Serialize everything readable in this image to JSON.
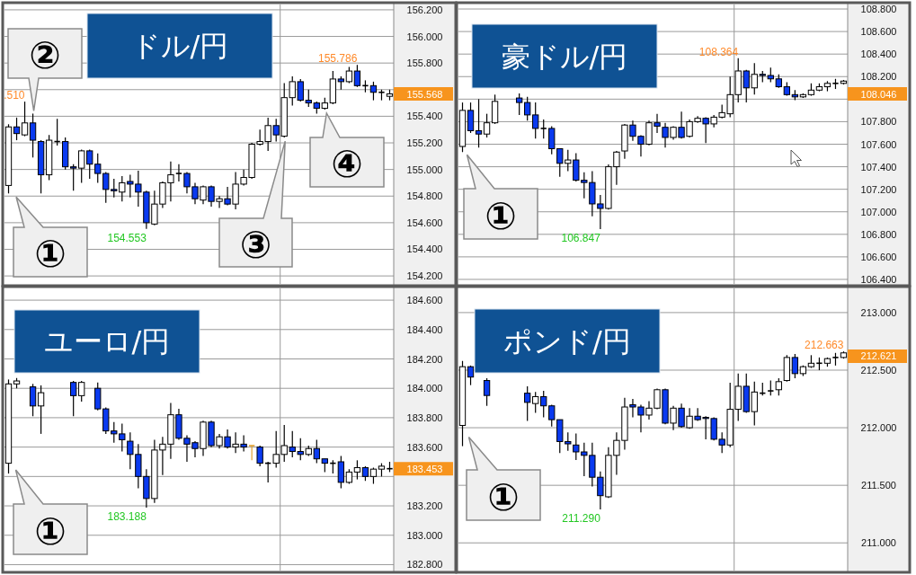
{
  "chart_data": [
    {
      "type": "candlestick",
      "title": "ドル/円",
      "categories": [
        null,
        null,
        null,
        null,
        null,
        null,
        null,
        null,
        null,
        null,
        null,
        null,
        null,
        null,
        null,
        null,
        null,
        null,
        null,
        null,
        null,
        null,
        null,
        null,
        null,
        null,
        null,
        null,
        null,
        null,
        null,
        null,
        null,
        null,
        null,
        null,
        null,
        null,
        null,
        null,
        null,
        null,
        null,
        null,
        null,
        null,
        null,
        null
      ],
      "ohlc": [
        [
          154.88,
          155.34,
          154.82,
          155.32
        ],
        [
          155.32,
          155.39,
          155.22,
          155.27
        ],
        [
          155.26,
          155.51,
          155.25,
          155.35
        ],
        [
          155.35,
          155.42,
          155.09,
          155.22
        ],
        [
          155.21,
          155.22,
          154.82,
          154.96
        ],
        [
          154.96,
          155.26,
          154.92,
          155.22
        ],
        [
          155.21,
          155.38,
          155.18,
          155.21
        ],
        [
          155.21,
          155.24,
          155.0,
          155.02
        ],
        [
          155.02,
          155.04,
          154.84,
          155.01
        ],
        [
          155.01,
          155.15,
          154.9,
          155.14
        ],
        [
          155.14,
          155.15,
          154.93,
          155.04
        ],
        [
          155.04,
          155.12,
          154.9,
          154.97
        ],
        [
          154.97,
          154.98,
          154.75,
          154.85
        ],
        [
          154.85,
          154.93,
          154.79,
          154.84
        ],
        [
          154.83,
          154.95,
          154.76,
          154.9
        ],
        [
          154.91,
          154.96,
          154.79,
          154.89
        ],
        [
          154.89,
          154.99,
          154.72,
          154.83
        ],
        [
          154.83,
          154.84,
          154.553,
          154.6
        ],
        [
          154.59,
          154.84,
          154.58,
          154.74
        ],
        [
          154.74,
          154.91,
          154.71,
          154.9
        ],
        [
          154.9,
          155.06,
          154.76,
          154.96
        ],
        [
          154.97,
          155.04,
          154.91,
          154.97
        ],
        [
          154.97,
          154.98,
          154.82,
          154.87
        ],
        [
          154.87,
          154.9,
          154.74,
          154.78
        ],
        [
          154.77,
          154.88,
          154.74,
          154.87
        ],
        [
          154.87,
          154.88,
          154.72,
          154.76
        ],
        [
          154.76,
          154.8,
          154.71,
          154.78
        ],
        [
          154.78,
          154.87,
          154.73,
          154.74
        ],
        [
          154.74,
          154.98,
          154.7,
          154.89
        ],
        [
          154.89,
          155.0,
          154.88,
          154.94
        ],
        [
          154.94,
          155.2,
          154.93,
          155.19
        ],
        [
          155.19,
          155.3,
          155.18,
          155.21
        ],
        [
          155.21,
          155.39,
          155.14,
          155.33
        ],
        [
          155.33,
          155.38,
          155.21,
          155.26
        ],
        [
          155.25,
          155.65,
          155.24,
          155.54
        ],
        [
          155.54,
          155.7,
          155.48,
          155.66
        ],
        [
          155.66,
          155.68,
          155.51,
          155.52
        ],
        [
          155.52,
          155.6,
          155.47,
          155.5
        ],
        [
          155.5,
          155.51,
          155.42,
          155.46
        ],
        [
          155.46,
          155.54,
          155.45,
          155.5
        ],
        [
          155.5,
          155.74,
          155.49,
          155.68
        ],
        [
          155.68,
          155.7,
          155.6,
          155.66
        ],
        [
          155.66,
          155.77,
          155.65,
          155.74
        ],
        [
          155.74,
          155.786,
          155.62,
          155.63
        ],
        [
          155.63,
          155.67,
          155.58,
          155.63
        ],
        [
          155.63,
          155.66,
          155.52,
          155.58
        ],
        [
          155.58,
          155.6,
          155.52,
          155.58
        ],
        [
          155.55,
          155.6,
          155.52,
          155.568
        ]
      ],
      "colors": [
        "#ffffff",
        "#0a3af0",
        "#ffffff",
        "#0a3af0",
        "#0a3af0",
        "#ffffff",
        "#000000",
        "#0a3af0",
        "#0a3af0",
        "#ffffff",
        "#0a3af0",
        "#0a3af0",
        "#0a3af0",
        "#0a3af0",
        "#ffffff",
        "#0a3af0",
        "#0a3af0",
        "#0a3af0",
        "#ffffff",
        "#ffffff",
        "#ffffff",
        "#000000",
        "#0a3af0",
        "#0a3af0",
        "#ffffff",
        "#0a3af0",
        "#ffffff",
        "#0a3af0",
        "#ffffff",
        "#ffffff",
        "#ffffff",
        "#ffffff",
        "#ffffff",
        "#0a3af0",
        "#ffffff",
        "#ffffff",
        "#0a3af0",
        "#0a3af0",
        "#0a3af0",
        "#ffffff",
        "#ffffff",
        "#0a3af0",
        "#ffffff",
        "#0a3af0",
        "#000000",
        "#0a3af0",
        "#000000",
        "#ffffff"
      ],
      "ylim": [
        154.14,
        156.24
      ],
      "yticks": [
        {
          "value": 154.2,
          "label": "154.200"
        },
        {
          "value": 154.4,
          "label": "154.400"
        },
        {
          "value": 154.6,
          "label": "154.600"
        },
        {
          "value": 154.8,
          "label": "154.800"
        },
        {
          "value": 155.0,
          "label": "155.000"
        },
        {
          "value": 155.2,
          "label": "155.200"
        },
        {
          "value": 155.4,
          "label": "155.400"
        },
        {
          "value": 155.6,
          "label": null
        },
        {
          "value": 155.8,
          "label": "155.800"
        },
        {
          "value": 156.0,
          "label": "156.000"
        },
        {
          "value": 156.2,
          "label": "156.200"
        }
      ],
      "grid": "y",
      "tick_labels": "y",
      "annotations": [
        "①",
        "②",
        "③",
        "④",
        "155.786",
        "154.553",
        ".510"
      ],
      "ref_lines": [
        {
          "axis": "y",
          "value": 155.568,
          "label": "155.568",
          "color": "#f7941d"
        }
      ]
    },
    {
      "type": "candlestick",
      "title": "豪ドル/円",
      "categories": [
        null,
        null,
        null,
        null,
        null,
        null,
        null,
        null,
        null,
        null,
        null,
        null,
        null,
        null,
        null,
        null,
        null,
        null,
        null,
        null,
        null,
        null,
        null,
        null,
        null,
        null,
        null,
        null,
        null,
        null,
        null,
        null,
        null,
        null,
        null,
        null,
        null,
        null,
        null,
        null,
        null,
        null,
        null,
        null,
        null,
        null,
        null,
        null
      ],
      "ohlc": [
        [
          107.58,
          107.97,
          107.53,
          107.9
        ],
        [
          107.9,
          107.97,
          107.7,
          107.72
        ],
        [
          107.72,
          108.0,
          107.57,
          107.69
        ],
        [
          107.69,
          107.87,
          107.66,
          107.79
        ],
        [
          107.79,
          108.04,
          107.78,
          107.98
        ],
        null,
        null,
        [
          108.01,
          108.05,
          107.86,
          107.97
        ],
        [
          107.97,
          108.02,
          107.81,
          107.86
        ],
        [
          107.86,
          107.97,
          107.65,
          107.74
        ],
        [
          107.74,
          107.82,
          107.65,
          107.74
        ],
        [
          107.74,
          107.76,
          107.51,
          107.56
        ],
        [
          107.56,
          107.56,
          107.31,
          107.43
        ],
        [
          107.43,
          107.55,
          107.36,
          107.46
        ],
        [
          107.46,
          107.52,
          107.27,
          107.28
        ],
        [
          107.28,
          107.35,
          107.12,
          107.26
        ],
        [
          107.26,
          107.36,
          106.96,
          107.07
        ],
        [
          107.07,
          107.15,
          106.847,
          107.03
        ],
        [
          107.03,
          107.42,
          107.02,
          107.4
        ],
        [
          107.4,
          107.54,
          107.24,
          107.53
        ],
        [
          107.54,
          107.78,
          107.47,
          107.77
        ],
        [
          107.77,
          107.81,
          107.63,
          107.67
        ],
        [
          107.67,
          107.68,
          107.49,
          107.6
        ],
        [
          107.6,
          107.81,
          107.59,
          107.79
        ],
        [
          107.79,
          107.87,
          107.7,
          107.76
        ],
        [
          107.75,
          107.79,
          107.57,
          107.66
        ],
        [
          107.66,
          107.76,
          107.64,
          107.75
        ],
        [
          107.75,
          107.89,
          107.65,
          107.66
        ],
        [
          107.67,
          107.82,
          107.66,
          107.8
        ],
        [
          107.8,
          107.85,
          107.79,
          107.83
        ],
        [
          107.83,
          107.84,
          107.61,
          107.78
        ],
        [
          107.78,
          107.86,
          107.75,
          107.84
        ],
        [
          107.84,
          107.95,
          107.83,
          107.88
        ],
        [
          107.87,
          108.2,
          107.84,
          108.04
        ],
        [
          108.04,
          108.364,
          107.97,
          108.25
        ],
        [
          108.25,
          108.26,
          107.97,
          108.1
        ],
        [
          108.1,
          108.32,
          108.04,
          108.22
        ],
        [
          108.22,
          108.25,
          108.15,
          108.21
        ],
        [
          108.21,
          108.28,
          108.15,
          108.18
        ],
        [
          108.18,
          108.22,
          108.1,
          108.11
        ],
        [
          108.11,
          108.15,
          108.03,
          108.04
        ],
        [
          108.04,
          108.08,
          107.99,
          108.02
        ],
        [
          108.02,
          108.05,
          108.01,
          108.04
        ],
        [
          108.04,
          108.14,
          108.03,
          108.08
        ],
        [
          108.08,
          108.14,
          108.07,
          108.11
        ],
        [
          108.11,
          108.16,
          108.07,
          108.14
        ],
        [
          108.14,
          108.18,
          108.09,
          108.14
        ],
        [
          108.14,
          108.17,
          108.13,
          108.16
        ]
      ],
      "colors": [
        "#ffffff",
        "#0a3af0",
        "#0a3af0",
        "#ffffff",
        "#ffffff",
        null,
        null,
        "#0a3af0",
        "#0a3af0",
        "#0a3af0",
        "#000000",
        "#0a3af0",
        "#0a3af0",
        "#ffffff",
        "#0a3af0",
        "#0a3af0",
        "#0a3af0",
        "#0a3af0",
        "#ffffff",
        "#ffffff",
        "#ffffff",
        "#0a3af0",
        "#0a3af0",
        "#ffffff",
        "#0a3af0",
        "#0a3af0",
        "#ffffff",
        "#0a3af0",
        "#ffffff",
        "#ffffff",
        "#0a3af0",
        "#ffffff",
        "#ffffff",
        "#ffffff",
        "#ffffff",
        "#0a3af0",
        "#ffffff",
        "#0a3af0",
        "#0a3af0",
        "#0a3af0",
        "#0a3af0",
        "#0a3af0",
        "#ffffff",
        "#ffffff",
        "#ffffff",
        "#ffffff",
        "#000000",
        "#ffffff"
      ],
      "ylim": [
        106.36,
        108.84
      ],
      "yticks": [
        {
          "value": 106.4,
          "label": "106.400"
        },
        {
          "value": 106.6,
          "label": "106.600"
        },
        {
          "value": 106.8,
          "label": "106.800"
        },
        {
          "value": 107.0,
          "label": "107.000"
        },
        {
          "value": 107.2,
          "label": "107.200"
        },
        {
          "value": 107.4,
          "label": "107.400"
        },
        {
          "value": 107.6,
          "label": "107.600"
        },
        {
          "value": 107.8,
          "label": "107.800"
        },
        {
          "value": 108.0,
          "label": null
        },
        {
          "value": 108.2,
          "label": "108.200"
        },
        {
          "value": 108.4,
          "label": "108.400"
        },
        {
          "value": 108.6,
          "label": "108.600"
        },
        {
          "value": 108.8,
          "label": "108.800"
        }
      ],
      "grid": "y",
      "tick_labels": "y",
      "annotations": [
        "①",
        "108.364",
        "106.847"
      ],
      "ref_lines": [
        {
          "axis": "y",
          "value": 108.046,
          "label": "108.046",
          "color": "#f7941d"
        }
      ]
    },
    {
      "type": "candlestick",
      "title": "ユーロ/円",
      "categories": [
        null,
        null,
        null,
        null,
        null,
        null,
        null,
        null,
        null,
        null,
        null,
        null,
        null,
        null,
        null,
        null,
        null,
        null,
        null,
        null,
        null,
        null,
        null,
        null,
        null,
        null,
        null,
        null,
        null,
        null,
        null,
        null,
        null,
        null,
        null,
        null,
        null,
        null,
        null,
        null,
        null,
        null,
        null,
        null,
        null,
        null,
        null,
        null
      ],
      "ohlc": [
        [
          183.49,
          184.06,
          183.42,
          184.03
        ],
        [
          184.03,
          184.07,
          184.0,
          184.05
        ],
        null,
        [
          184.01,
          184.03,
          183.81,
          183.88
        ],
        [
          183.88,
          184.02,
          183.69,
          183.97
        ],
        null,
        null,
        null,
        [
          184.04,
          184.05,
          183.81,
          183.95
        ],
        [
          183.95,
          184.05,
          183.91,
          184.04
        ],
        null,
        [
          184.0,
          184.04,
          183.85,
          183.86
        ],
        [
          183.86,
          183.87,
          183.69,
          183.71
        ],
        [
          183.71,
          183.77,
          183.63,
          183.69
        ],
        [
          183.69,
          183.76,
          183.57,
          183.65
        ],
        [
          183.64,
          183.7,
          183.45,
          183.55
        ],
        [
          183.55,
          183.62,
          183.32,
          183.4
        ],
        [
          183.4,
          183.45,
          183.188,
          183.25
        ],
        [
          183.25,
          183.65,
          183.22,
          183.58
        ],
        [
          183.58,
          183.67,
          183.41,
          183.62
        ],
        [
          183.62,
          183.9,
          183.52,
          183.82
        ],
        [
          183.82,
          183.86,
          183.65,
          183.66
        ],
        [
          183.66,
          183.68,
          183.5,
          183.62
        ],
        [
          183.63,
          183.64,
          183.53,
          183.59
        ],
        [
          183.59,
          183.78,
          183.54,
          183.77
        ],
        [
          183.77,
          183.78,
          183.6,
          183.61
        ],
        [
          183.61,
          183.69,
          183.59,
          183.67
        ],
        [
          183.67,
          183.72,
          183.59,
          183.6
        ],
        [
          183.6,
          183.7,
          183.56,
          183.62
        ],
        [
          183.62,
          183.68,
          183.57,
          183.6
        ],
        [
          183.61,
          183.61,
          183.51,
          183.61
        ],
        [
          183.6,
          183.61,
          183.47,
          183.49
        ],
        [
          183.49,
          183.5,
          183.36,
          183.49
        ],
        [
          183.49,
          183.71,
          183.46,
          183.55
        ],
        [
          183.55,
          183.75,
          183.5,
          183.61
        ],
        [
          183.6,
          183.71,
          183.53,
          183.57
        ],
        [
          183.57,
          183.66,
          183.51,
          183.55
        ],
        [
          183.55,
          183.61,
          183.54,
          183.59
        ],
        [
          183.59,
          183.65,
          183.49,
          183.52
        ],
        [
          183.52,
          183.52,
          183.43,
          183.49
        ],
        [
          183.49,
          183.51,
          183.42,
          183.49
        ],
        [
          183.5,
          183.54,
          183.32,
          183.36
        ],
        [
          183.36,
          183.45,
          183.35,
          183.43
        ],
        [
          183.43,
          183.51,
          183.38,
          183.46
        ],
        [
          183.46,
          183.47,
          183.37,
          183.4
        ],
        [
          183.4,
          183.46,
          183.35,
          183.45
        ],
        [
          183.45,
          183.49,
          183.4,
          183.47
        ],
        [
          183.453,
          183.5,
          183.43,
          183.453
        ]
      ],
      "colors": [
        "#ffffff",
        "#ffffff",
        null,
        "#0a3af0",
        "#ffffff",
        null,
        null,
        null,
        "#0a3af0",
        "#ffffff",
        null,
        "#0a3af0",
        "#0a3af0",
        "#0a3af0",
        "#0a3af0",
        "#0a3af0",
        "#0a3af0",
        "#0a3af0",
        "#ffffff",
        "#ffffff",
        "#ffffff",
        "#0a3af0",
        "#0a3af0",
        "#0a3af0",
        "#ffffff",
        "#0a3af0",
        "#ffffff",
        "#0a3af0",
        "#ffffff",
        "#0a3af0",
        "#e0a030",
        "#0a3af0",
        "#000000",
        "#ffffff",
        "#ffffff",
        "#0a3af0",
        "#0a3af0",
        "#ffffff",
        "#0a3af0",
        "#0a3af0",
        "#000000",
        "#0a3af0",
        "#ffffff",
        "#ffffff",
        "#0a3af0",
        "#ffffff",
        "#ffffff",
        "#000000"
      ],
      "ylim": [
        182.76,
        184.68
      ],
      "yticks": [
        {
          "value": 182.8,
          "label": "182.800"
        },
        {
          "value": 183.0,
          "label": "183.000"
        },
        {
          "value": 183.2,
          "label": "183.200"
        },
        {
          "value": 183.4,
          "label": null
        },
        {
          "value": 183.6,
          "label": "183.600"
        },
        {
          "value": 183.8,
          "label": "183.800"
        },
        {
          "value": 184.0,
          "label": "184.000"
        },
        {
          "value": 184.2,
          "label": "184.200"
        },
        {
          "value": 184.4,
          "label": "184.400"
        },
        {
          "value": 184.6,
          "label": "184.600"
        }
      ],
      "grid": "y",
      "tick_labels": "y",
      "annotations": [
        "①",
        "183.188"
      ],
      "ref_lines": [
        {
          "axis": "y",
          "value": 183.453,
          "label": "183.453",
          "color": "#f7941d"
        }
      ]
    },
    {
      "type": "candlestick",
      "title": "ポンド/円",
      "categories": [
        null,
        null,
        null,
        null,
        null,
        null,
        null,
        null,
        null,
        null,
        null,
        null,
        null,
        null,
        null,
        null,
        null,
        null,
        null,
        null,
        null,
        null,
        null,
        null,
        null,
        null,
        null,
        null,
        null,
        null,
        null,
        null,
        null,
        null,
        null,
        null,
        null,
        null,
        null,
        null,
        null,
        null,
        null,
        null,
        null,
        null,
        null,
        null
      ],
      "ohlc": [
        [
          212.02,
          212.58,
          211.84,
          212.53
        ],
        [
          212.53,
          212.54,
          212.37,
          212.44
        ],
        null,
        [
          212.41,
          212.43,
          212.19,
          212.28
        ],
        null,
        null,
        null,
        null,
        [
          212.3,
          212.36,
          212.06,
          212.22
        ],
        [
          212.21,
          212.31,
          212.13,
          212.27
        ],
        [
          212.27,
          212.32,
          212.09,
          212.19
        ],
        [
          212.19,
          212.2,
          212.01,
          212.07
        ],
        [
          212.07,
          212.07,
          211.78,
          211.88
        ],
        [
          211.88,
          211.96,
          211.8,
          211.86
        ],
        [
          211.85,
          211.95,
          211.72,
          211.79
        ],
        [
          211.79,
          211.87,
          211.58,
          211.76
        ],
        [
          211.76,
          211.87,
          211.49,
          211.57
        ],
        [
          211.57,
          211.62,
          211.29,
          211.41
        ],
        [
          211.4,
          211.83,
          211.39,
          211.76
        ],
        [
          211.76,
          211.96,
          211.59,
          211.89
        ],
        [
          211.89,
          212.26,
          211.81,
          212.18
        ],
        [
          212.2,
          212.25,
          212.09,
          212.18
        ],
        [
          212.18,
          212.2,
          211.96,
          212.11
        ],
        [
          212.11,
          212.23,
          212.07,
          212.17
        ],
        [
          212.17,
          212.34,
          212.16,
          212.33
        ],
        [
          212.33,
          212.34,
          212.03,
          212.04
        ],
        [
          212.04,
          212.19,
          211.98,
          212.17
        ],
        [
          212.17,
          212.21,
          212.0,
          212.01
        ],
        [
          212.0,
          212.17,
          211.99,
          212.1
        ],
        [
          212.1,
          212.17,
          212.06,
          212.07
        ],
        [
          212.09,
          212.1,
          211.9,
          212.08
        ],
        [
          212.08,
          212.09,
          211.89,
          211.9
        ],
        [
          211.9,
          211.96,
          211.78,
          211.85
        ],
        [
          211.85,
          212.39,
          211.83,
          212.16
        ],
        [
          212.16,
          212.47,
          212.06,
          212.36
        ],
        [
          212.36,
          212.47,
          212.13,
          212.14
        ],
        [
          212.14,
          212.4,
          212.02,
          212.31
        ],
        [
          212.3,
          212.39,
          212.28,
          212.3
        ],
        [
          212.32,
          212.41,
          212.28,
          212.32
        ],
        [
          212.33,
          212.43,
          212.28,
          212.4
        ],
        [
          212.41,
          212.63,
          212.4,
          212.61
        ],
        [
          212.61,
          212.64,
          212.43,
          212.47
        ],
        [
          212.47,
          212.54,
          212.45,
          212.53
        ],
        [
          212.53,
          212.63,
          212.52,
          212.56
        ],
        [
          212.56,
          212.61,
          212.5,
          212.56
        ],
        [
          212.56,
          212.61,
          212.53,
          212.6
        ],
        [
          212.61,
          212.65,
          212.54,
          212.61
        ],
        [
          212.61,
          212.663,
          212.6,
          212.65
        ]
      ],
      "colors": [
        "#ffffff",
        "#0a3af0",
        null,
        "#0a3af0",
        null,
        null,
        null,
        null,
        "#0a3af0",
        "#ffffff",
        "#0a3af0",
        "#0a3af0",
        "#0a3af0",
        "#0a3af0",
        "#0a3af0",
        "#0a3af0",
        "#0a3af0",
        "#0a3af0",
        "#ffffff",
        "#ffffff",
        "#ffffff",
        "#0a3af0",
        "#0a3af0",
        "#ffffff",
        "#ffffff",
        "#0a3af0",
        "#ffffff",
        "#0a3af0",
        "#ffffff",
        "#0a3af0",
        "#0a3af0",
        "#0a3af0",
        "#0a3af0",
        "#ffffff",
        "#ffffff",
        "#0a3af0",
        "#ffffff",
        "#000000",
        "#000000",
        "#ffffff",
        "#ffffff",
        "#0a3af0",
        "#ffffff",
        "#ffffff",
        "#000000",
        "#ffffff",
        "#000000",
        "#ffffff"
      ],
      "ylim": [
        210.76,
        213.21
      ],
      "yticks": [
        {
          "value": 211.0,
          "label": "211.000"
        },
        {
          "value": 211.5,
          "label": "211.500"
        },
        {
          "value": 212.0,
          "label": "212.000"
        },
        {
          "value": 212.5,
          "label": "212.500"
        },
        {
          "value": 213.0,
          "label": "213.000"
        }
      ],
      "grid": "y",
      "tick_labels": "y",
      "annotations": [
        "①",
        "212.663",
        "211.290"
      ],
      "ref_lines": [
        {
          "axis": "y",
          "value": 212.621,
          "label": "212.621",
          "color": "#f7941d"
        }
      ]
    }
  ]
}
